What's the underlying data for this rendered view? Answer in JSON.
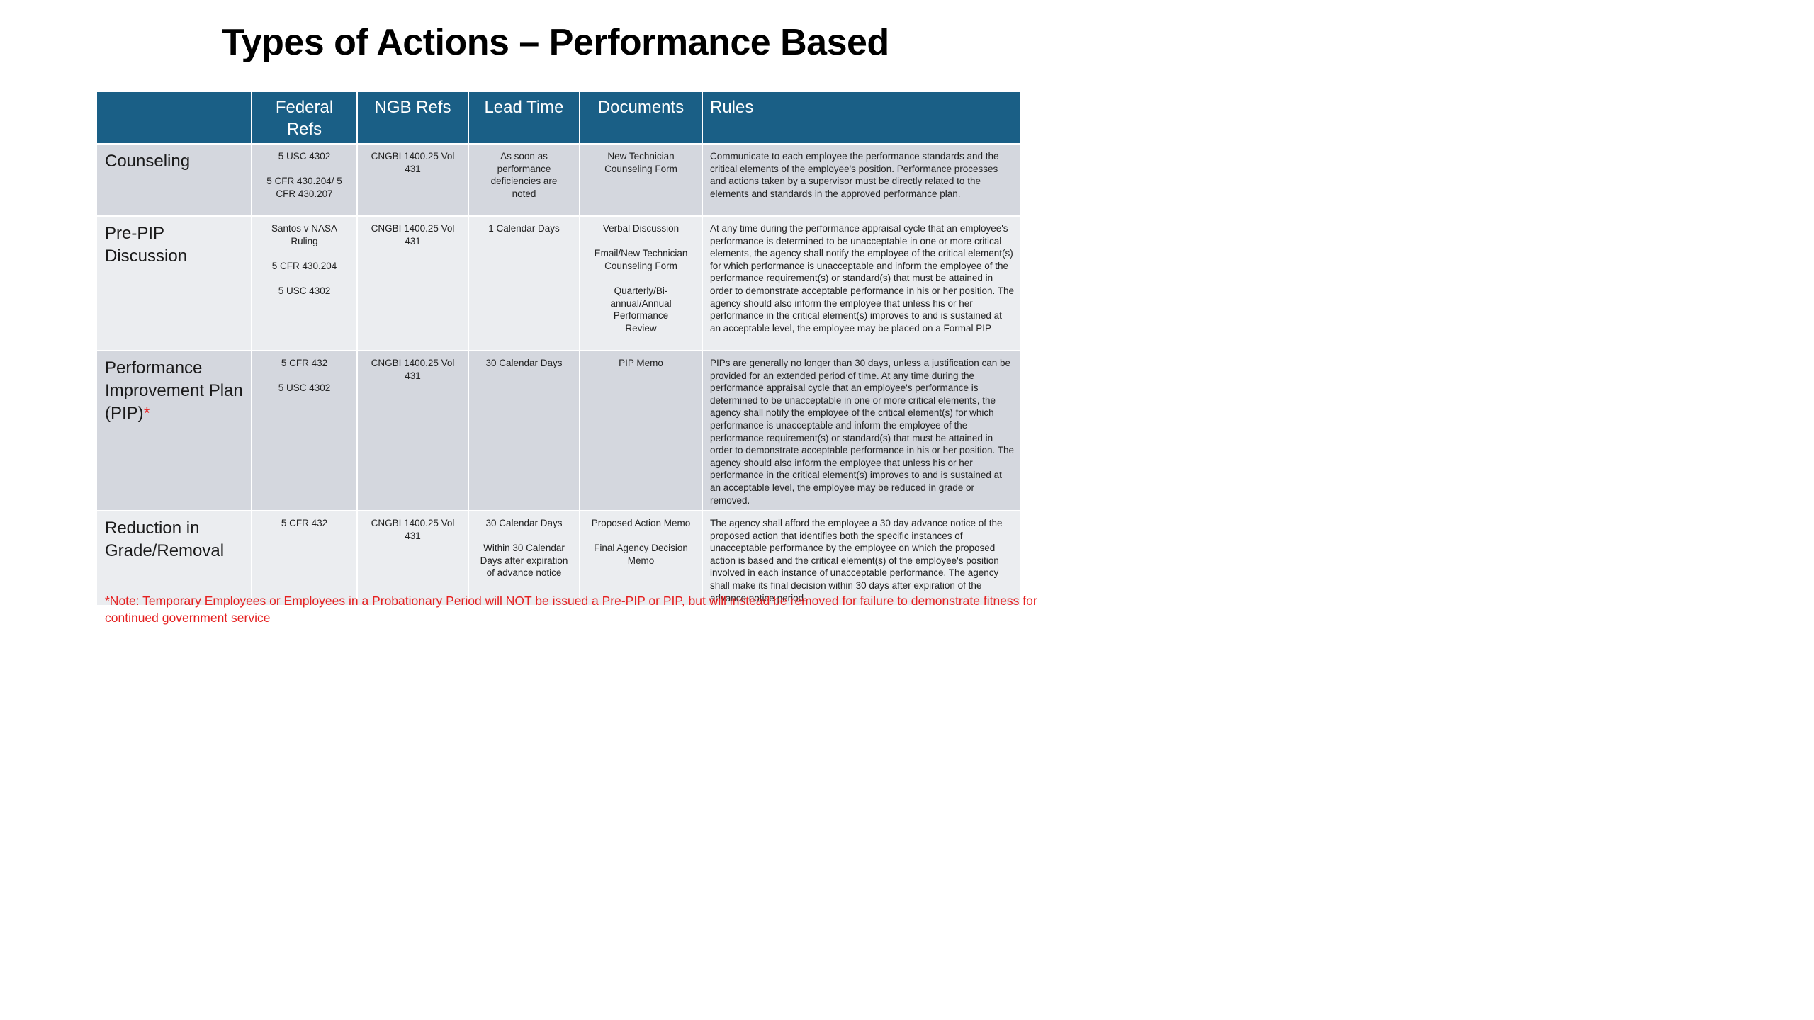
{
  "title": "Types of Actions – Performance Based",
  "headers": [
    "",
    "Federal Refs",
    "NGB Refs",
    "Lead Time",
    "Documents",
    "Rules"
  ],
  "rows": [
    {
      "action": "Counseling",
      "federal": [
        "5 USC 4302",
        "5 CFR 430.204/ 5 CFR 430.207"
      ],
      "ngb": "CNGBI 1400.25 Vol 431",
      "lead": [
        "As soon as performance deficiencies are noted"
      ],
      "documents": [
        "New Technician Counseling Form"
      ],
      "rules": "Communicate to each employee the performance standards and the critical elements of the employee's position. Performance processes and actions taken by a supervisor must be directly related to the elements and standards in the approved performance plan."
    },
    {
      "action": "Pre-PIP Discussion",
      "federal": [
        "Santos v NASA Ruling",
        "5 CFR 430.204",
        "5 USC 4302"
      ],
      "ngb": "CNGBI 1400.25 Vol 431",
      "lead": [
        "1 Calendar Days"
      ],
      "documents": [
        "Verbal Discussion",
        "Email/New Technician Counseling Form",
        "Quarterly/Bi-annual/Annual Performance Review"
      ],
      "rules": "At any time during the performance appraisal cycle that an employee's performance is determined to be unacceptable in one or more critical elements, the agency shall notify the employee of the critical element(s) for which performance is unacceptable and inform the employee of the performance requirement(s) or standard(s) that must be attained in order to demonstrate acceptable performance in his or her position. The agency should also inform the employee that unless his or her performance in the critical element(s) improves to and is sustained at an acceptable level, the employee may be placed on a Formal PIP"
    },
    {
      "action": "Performance Improvement Plan (PIP)",
      "action_mark": "*",
      "federal": [
        "5 CFR 432",
        "5 USC 4302"
      ],
      "ngb": "CNGBI 1400.25 Vol 431",
      "lead": [
        "30 Calendar Days"
      ],
      "documents": [
        "PIP Memo"
      ],
      "rules": "PIPs are generally no longer than 30 days, unless a justification can be provided for an extended period of time. At any time during the performance appraisal cycle that an employee's performance is determined to be unacceptable in one or more critical elements, the agency shall notify the employee of the critical element(s) for which performance is unacceptable and inform the employee of the performance requirement(s) or standard(s) that must be attained in order to demonstrate acceptable performance in his or her position. The agency should also inform the employee that unless his or her performance in the critical element(s) improves to and is sustained at an acceptable level, the employee may be reduced in grade or removed."
    },
    {
      "action": "Reduction in Grade/Removal",
      "federal": [
        "5 CFR 432"
      ],
      "ngb": "CNGBI 1400.25 Vol 431",
      "lead": [
        "30 Calendar Days",
        "Within 30 Calendar Days after expiration of advance notice"
      ],
      "documents": [
        "Proposed Action Memo",
        "Final Agency Decision Memo"
      ],
      "rules": "The agency shall afford the employee a 30 day advance notice of the proposed action that identifies both the specific instances of unacceptable performance by the employee on which the proposed action is based and the critical element(s) of the employee's position involved in each instance of unacceptable performance. The agency shall make its final decision within 30 days after expiration of the advance notice period."
    }
  ],
  "note": "*Note: Temporary Employees or Employees in a Probationary Period will NOT be issued a Pre-PIP or PIP, but will instead be removed for failure to demonstrate fitness for continued government service",
  "colors": {
    "header_bg": "#1a5f86",
    "row_dark": "#d4d7de",
    "row_light": "#ebedf0",
    "note": "#e52020"
  }
}
